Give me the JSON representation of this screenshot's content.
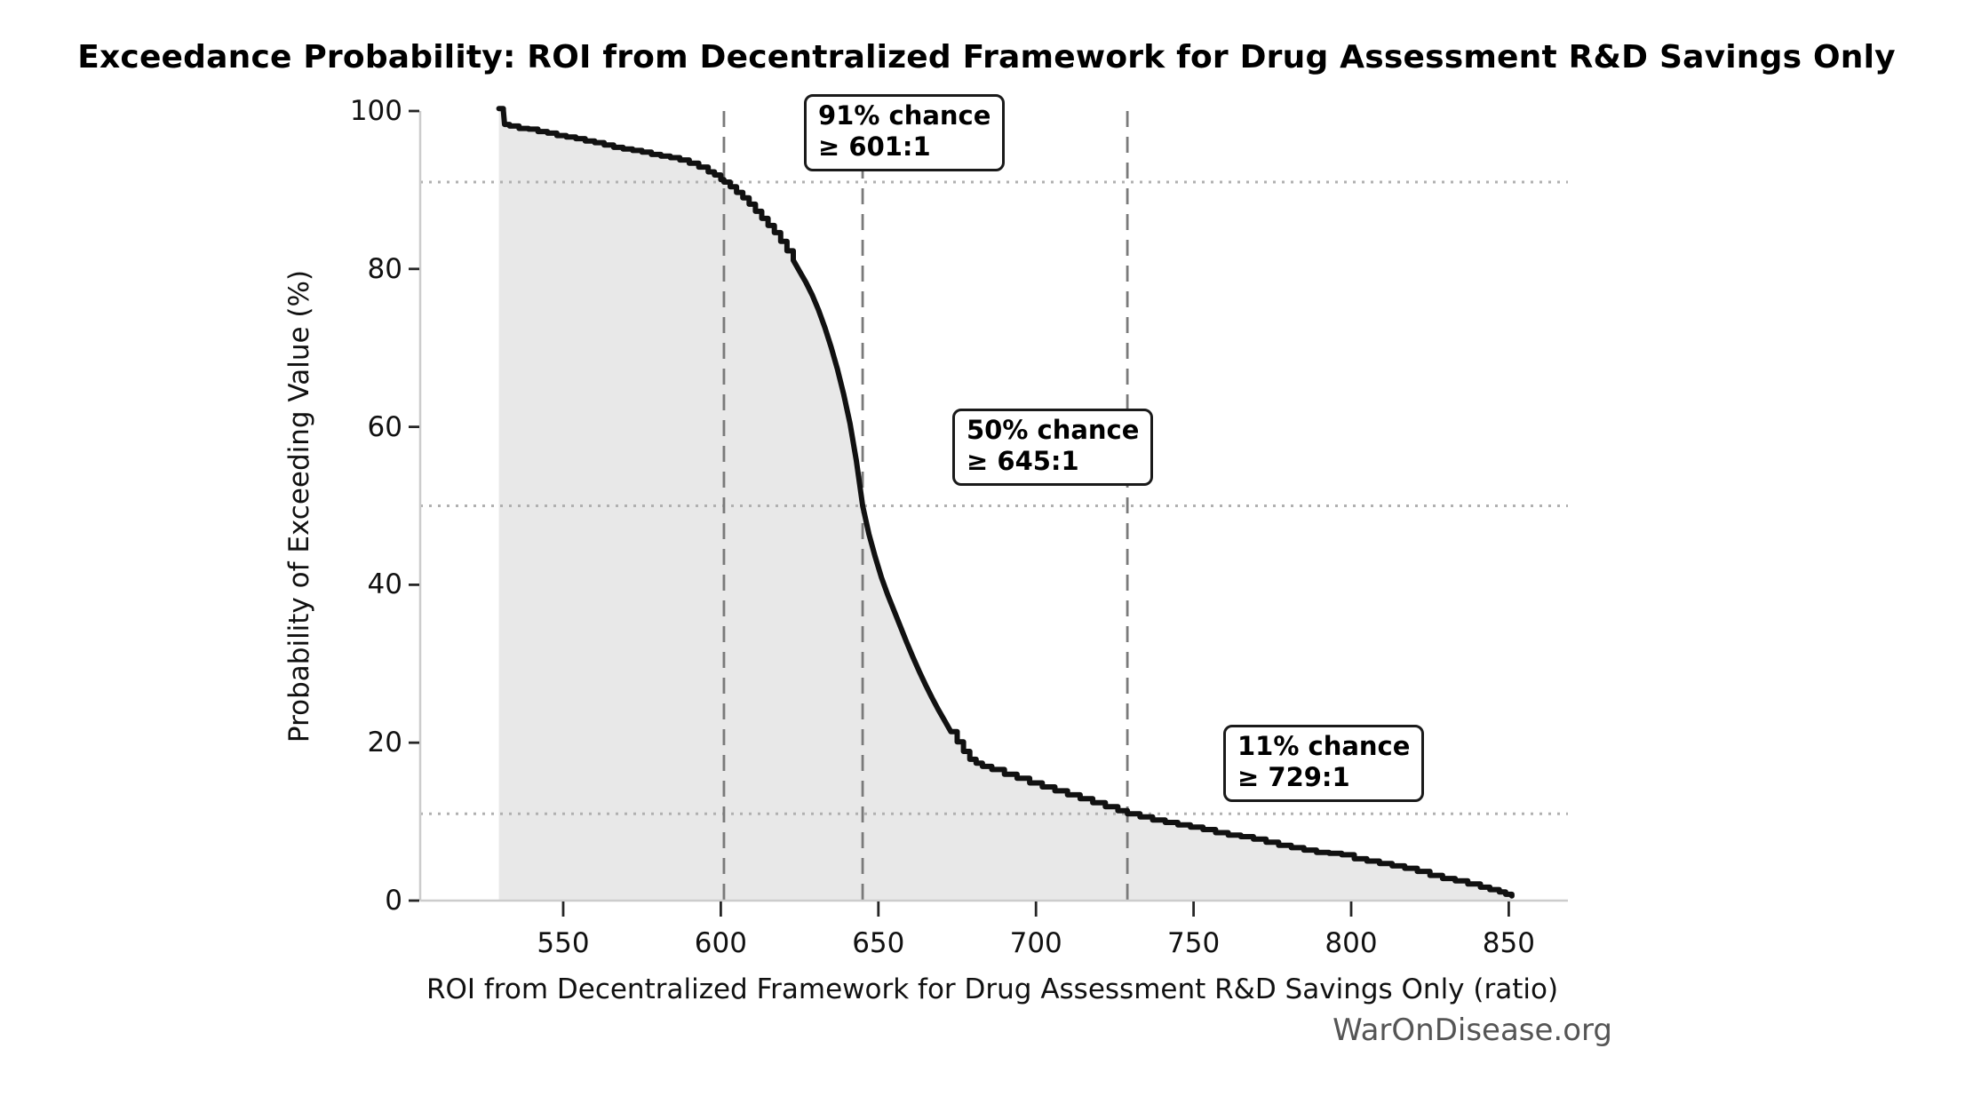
{
  "chart_data": {
    "type": "area",
    "title": "Exceedance Probability: ROI from Decentralized Framework for Drug Assessment R&D Savings Only",
    "xlabel": "ROI from Decentralized Framework for Drug Assessment R&D Savings Only (ratio)",
    "ylabel": "Probability of Exceeding Value (%)",
    "watermark": "WarOnDisease.org",
    "x_ticks": [
      550,
      600,
      650,
      700,
      750,
      800,
      850
    ],
    "y_ticks": [
      0,
      20,
      40,
      60,
      80,
      100
    ],
    "xlim": [
      505,
      869
    ],
    "ylim": [
      0,
      104
    ],
    "grid": false,
    "legend": "none",
    "thresholds": [
      {
        "chance": 91,
        "value": 601
      },
      {
        "chance": 50,
        "value": 645
      },
      {
        "chance": 11,
        "value": 729
      }
    ],
    "annotations": [
      {
        "line1": "91% chance",
        "line2": "≥ 601:1"
      },
      {
        "line1": "50% chance",
        "line2": "≥ 645:1"
      },
      {
        "line1": "11% chance",
        "line2": "≥ 729:1"
      }
    ],
    "colors": {
      "curve": "#111111",
      "fill": "#e8e8e8",
      "dashed_line": "#7a7a7a",
      "dotted_line": "#b0b0b0",
      "spine": "#cccccc",
      "tick": "#262626",
      "watermark": "#555555",
      "background": "#ffffff"
    },
    "series": [
      {
        "name": "exceedance probability curve",
        "points": [
          [
            529.6,
            100.3
          ],
          [
            531.0,
            100.1
          ],
          [
            531.4,
            98.3
          ],
          [
            533,
            98.1
          ],
          [
            536,
            97.8
          ],
          [
            539,
            97.7
          ],
          [
            542,
            97.4
          ],
          [
            545,
            97.2
          ],
          [
            548,
            96.9
          ],
          [
            551,
            96.7
          ],
          [
            554,
            96.5
          ],
          [
            557,
            96.2
          ],
          [
            560,
            96.0
          ],
          [
            563,
            95.7
          ],
          [
            566,
            95.4
          ],
          [
            569,
            95.2
          ],
          [
            572,
            95.0
          ],
          [
            575,
            94.8
          ],
          [
            578,
            94.5
          ],
          [
            581,
            94.3
          ],
          [
            584,
            94.1
          ],
          [
            587,
            93.8
          ],
          [
            590,
            93.4
          ],
          [
            593,
            92.9
          ],
          [
            596,
            92.3
          ],
          [
            598,
            91.9
          ],
          [
            600,
            91.3
          ],
          [
            601,
            91.0
          ],
          [
            603,
            90.4
          ],
          [
            605,
            89.7
          ],
          [
            607,
            89.0
          ],
          [
            609,
            88.2
          ],
          [
            611,
            87.3
          ],
          [
            613,
            86.4
          ],
          [
            615,
            85.5
          ],
          [
            617,
            84.6
          ],
          [
            619,
            83.5
          ],
          [
            621,
            82.3
          ],
          [
            623,
            81.1
          ],
          [
            625,
            79.7
          ],
          [
            627,
            78.3
          ],
          [
            629,
            76.7
          ],
          [
            631,
            74.8
          ],
          [
            633,
            72.6
          ],
          [
            635,
            70.1
          ],
          [
            637,
            67.3
          ],
          [
            639,
            64.1
          ],
          [
            641,
            60.4
          ],
          [
            643,
            55.7
          ],
          [
            645,
            50.0
          ],
          [
            647,
            46.4
          ],
          [
            649,
            43.5
          ],
          [
            651,
            40.9
          ],
          [
            653,
            38.7
          ],
          [
            655,
            36.7
          ],
          [
            657,
            34.7
          ],
          [
            659,
            32.7
          ],
          [
            661,
            30.8
          ],
          [
            663,
            29.0
          ],
          [
            665,
            27.3
          ],
          [
            667,
            25.7
          ],
          [
            669,
            24.2
          ],
          [
            671,
            22.8
          ],
          [
            673,
            21.4
          ],
          [
            675,
            20.1
          ],
          [
            677,
            18.9
          ],
          [
            679,
            17.9
          ],
          [
            681,
            17.4
          ],
          [
            683,
            17.0
          ],
          [
            686,
            16.6
          ],
          [
            690,
            16.0
          ],
          [
            694,
            15.5
          ],
          [
            698,
            14.9
          ],
          [
            702,
            14.4
          ],
          [
            706,
            13.9
          ],
          [
            710,
            13.4
          ],
          [
            714,
            12.9
          ],
          [
            718,
            12.4
          ],
          [
            722,
            11.9
          ],
          [
            726,
            11.4
          ],
          [
            729,
            11.0
          ],
          [
            733,
            10.6
          ],
          [
            737,
            10.2
          ],
          [
            741,
            9.9
          ],
          [
            745,
            9.6
          ],
          [
            749,
            9.3
          ],
          [
            753,
            9.0
          ],
          [
            757,
            8.6
          ],
          [
            761,
            8.3
          ],
          [
            765,
            8.1
          ],
          [
            769,
            7.8
          ],
          [
            773,
            7.4
          ],
          [
            777,
            7.0
          ],
          [
            781,
            6.7
          ],
          [
            785,
            6.4
          ],
          [
            789,
            6.1
          ],
          [
            793,
            6.0
          ],
          [
            797,
            5.8
          ],
          [
            801,
            5.3
          ],
          [
            805,
            5.0
          ],
          [
            809,
            4.7
          ],
          [
            813,
            4.4
          ],
          [
            817,
            4.1
          ],
          [
            821,
            3.7
          ],
          [
            825,
            3.2
          ],
          [
            829,
            2.8
          ],
          [
            833,
            2.5
          ],
          [
            837,
            2.1
          ],
          [
            841,
            1.7
          ],
          [
            844,
            1.4
          ],
          [
            847,
            1.1
          ],
          [
            849,
            0.8
          ],
          [
            851,
            0.6
          ]
        ]
      }
    ]
  }
}
